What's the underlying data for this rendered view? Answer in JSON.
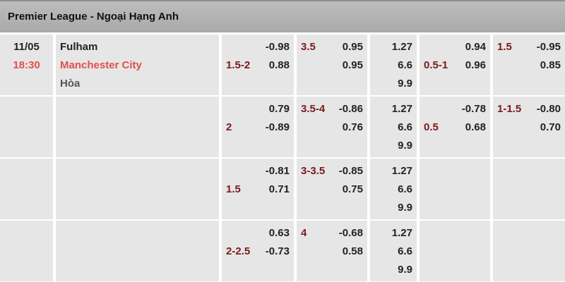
{
  "league": {
    "title": "Premier League - Ngoại Hạng Anh"
  },
  "match": {
    "date": "11/05",
    "time": "18:30",
    "home": "Fulham",
    "away": "Manchester City",
    "draw": "Hòa"
  },
  "rows": [
    {
      "hdp": {
        "line": "1.5-2",
        "home": "-0.98",
        "away": "0.88"
      },
      "ou": {
        "line": "3.5",
        "over": "0.95",
        "under": "0.95"
      },
      "x12": {
        "home": "1.27",
        "away": "6.6",
        "draw": "9.9"
      },
      "h1hdp": {
        "line": "0.5-1",
        "home": "0.94",
        "away": "0.96"
      },
      "h1ou": {
        "line": "1.5",
        "over": "-0.95",
        "under": "0.85"
      }
    },
    {
      "hdp": {
        "line": "2",
        "home": "0.79",
        "away": "-0.89"
      },
      "ou": {
        "line": "3.5-4",
        "over": "-0.86",
        "under": "0.76"
      },
      "x12": {
        "home": "1.27",
        "away": "6.6",
        "draw": "9.9"
      },
      "h1hdp": {
        "line": "0.5",
        "home": "-0.78",
        "away": "0.68"
      },
      "h1ou": {
        "line": "1-1.5",
        "over": "-0.80",
        "under": "0.70"
      }
    },
    {
      "hdp": {
        "line": "1.5",
        "home": "-0.81",
        "away": "0.71"
      },
      "ou": {
        "line": "3-3.5",
        "over": "-0.85",
        "under": "0.75"
      },
      "x12": {
        "home": "1.27",
        "away": "6.6",
        "draw": "9.9"
      }
    },
    {
      "hdp": {
        "line": "2-2.5",
        "home": "0.63",
        "away": "-0.73"
      },
      "ou": {
        "line": "4",
        "over": "-0.68",
        "under": "0.58"
      },
      "x12": {
        "home": "1.27",
        "away": "6.6",
        "draw": "9.9"
      }
    }
  ],
  "colors": {
    "accent_red": "#7a1a1a",
    "time_red": "#e0504a",
    "cell_bg": "#e6e6e6",
    "header_bg": "#b3b3b3"
  }
}
